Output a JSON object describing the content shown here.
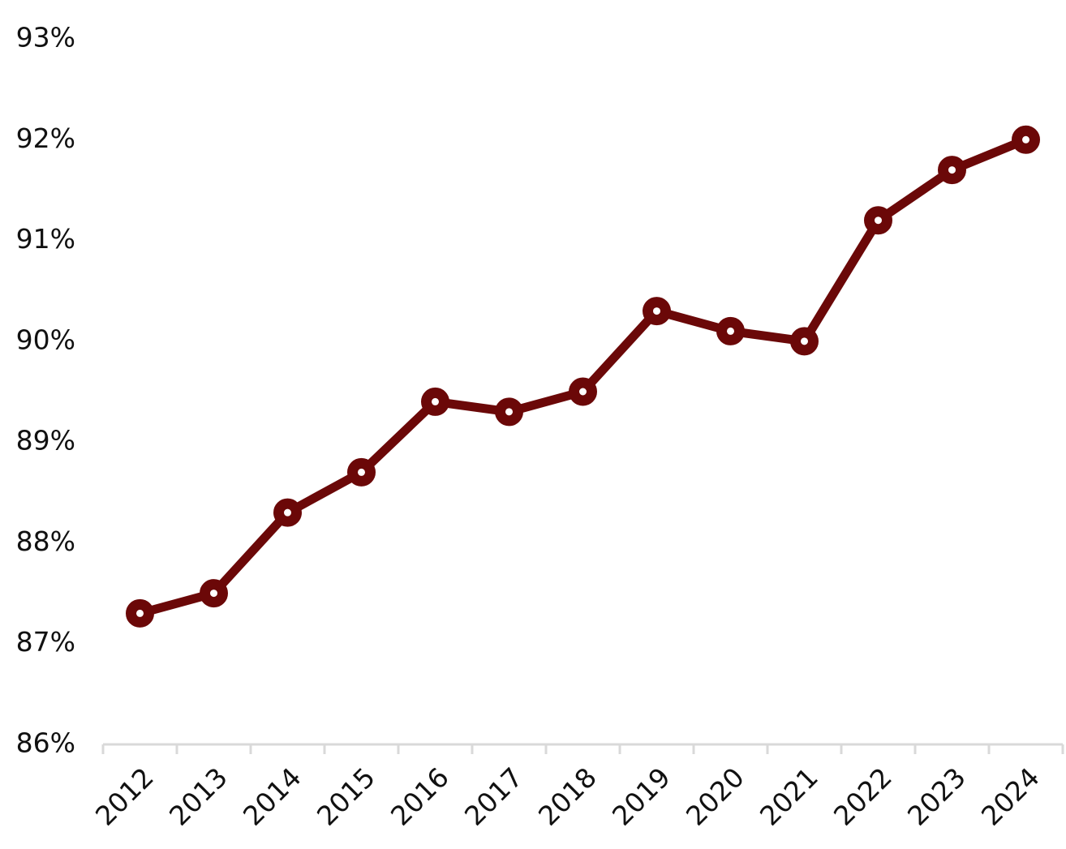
{
  "chart_data": {
    "type": "line",
    "categories": [
      "2012",
      "2013",
      "2014",
      "2015",
      "2016",
      "2017",
      "2018",
      "2019",
      "2020",
      "2021",
      "2022",
      "2023",
      "2024"
    ],
    "values": [
      87.3,
      87.5,
      88.3,
      88.7,
      89.4,
      89.3,
      89.5,
      90.3,
      90.1,
      90.0,
      91.2,
      91.7,
      92.0
    ],
    "color": "#6b0808",
    "ylim": [
      86,
      93
    ],
    "yticks": [
      {
        "value": 86,
        "label": "86%"
      },
      {
        "value": 87,
        "label": "87%"
      },
      {
        "value": 88,
        "label": "88%"
      },
      {
        "value": 89,
        "label": "89%"
      },
      {
        "value": 90,
        "label": "90%"
      },
      {
        "value": 91,
        "label": "91%"
      },
      {
        "value": 92,
        "label": "92%"
      },
      {
        "value": 93,
        "label": "93%"
      }
    ],
    "grid": false
  }
}
